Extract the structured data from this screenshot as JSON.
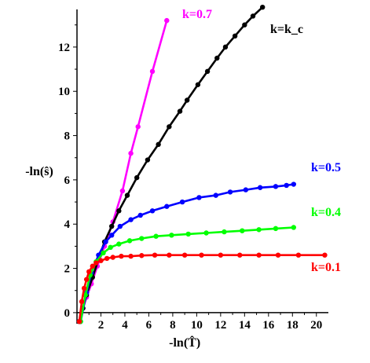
{
  "chart_data": {
    "type": "line",
    "title": "",
    "xlabel": "-ln(T̂)",
    "ylabel": "-ln(ŝ)",
    "xlim": [
      0,
      21
    ],
    "ylim": [
      -0.5,
      13.7
    ],
    "x_ticks": [
      2,
      4,
      6,
      8,
      10,
      12,
      14,
      16,
      18,
      20
    ],
    "y_ticks": [
      0,
      2,
      4,
      6,
      8,
      10,
      12
    ],
    "grid": false,
    "legend": "labels at line ends",
    "series": [
      {
        "name": "k=0.7",
        "color": "#ff00ff",
        "x": [
          0.2,
          0.5,
          0.8,
          1.2,
          1.7,
          2.3,
          3.0,
          3.8,
          4.5,
          5.1,
          6.3,
          7.5
        ],
        "y": [
          -0.4,
          0.2,
          0.7,
          1.3,
          2.1,
          3.0,
          4.1,
          5.5,
          7.2,
          8.4,
          10.9,
          13.2
        ]
      },
      {
        "name": "k=k_c",
        "color": "#000000",
        "x": [
          0.2,
          0.5,
          0.8,
          1.3,
          1.8,
          2.3,
          2.9,
          3.5,
          4.2,
          5.0,
          5.9,
          6.8,
          7.7,
          8.6,
          9.2,
          10.1,
          10.9,
          11.7,
          12.4,
          13.2,
          14.0,
          14.7,
          15.5
        ],
        "y": [
          -0.4,
          0.2,
          0.8,
          1.6,
          2.4,
          3.2,
          3.9,
          4.6,
          5.3,
          6.1,
          6.9,
          7.6,
          8.4,
          9.1,
          9.6,
          10.3,
          10.9,
          11.5,
          12.0,
          12.5,
          13.0,
          13.4,
          13.8
        ]
      },
      {
        "name": "k=0.5",
        "color": "#0000ff",
        "x": [
          0.3,
          0.8,
          1.2,
          1.8,
          2.4,
          2.9,
          3.6,
          4.5,
          5.3,
          6.3,
          7.5,
          8.8,
          10.2,
          11.6,
          12.8,
          14.1,
          15.3,
          16.6,
          17.5,
          18.1
        ],
        "y": [
          -0.4,
          0.9,
          1.8,
          2.6,
          3.2,
          3.5,
          3.9,
          4.2,
          4.4,
          4.6,
          4.8,
          5.0,
          5.2,
          5.3,
          5.45,
          5.55,
          5.65,
          5.7,
          5.75,
          5.8
        ]
      },
      {
        "name": "k=0.4",
        "color": "#00ff00",
        "x": [
          0.3,
          0.7,
          1.1,
          1.6,
          2.2,
          2.8,
          3.5,
          4.4,
          5.4,
          6.6,
          7.9,
          9.3,
          10.8,
          12.3,
          13.8,
          15.2,
          16.6,
          18.1
        ],
        "y": [
          -0.4,
          0.8,
          1.7,
          2.3,
          2.7,
          2.95,
          3.1,
          3.25,
          3.35,
          3.45,
          3.5,
          3.55,
          3.6,
          3.65,
          3.7,
          3.75,
          3.8,
          3.85
        ]
      },
      {
        "name": "k=0.1",
        "color": "#ff0000",
        "x": [
          0.2,
          0.4,
          0.6,
          0.8,
          1.0,
          1.3,
          1.6,
          2.0,
          2.5,
          3.0,
          3.7,
          4.5,
          5.4,
          6.5,
          7.7,
          9.0,
          10.4,
          12.0,
          13.6,
          15.2,
          16.8,
          18.5,
          20.7
        ],
        "y": [
          -0.4,
          0.5,
          1.1,
          1.5,
          1.85,
          2.1,
          2.25,
          2.35,
          2.45,
          2.5,
          2.55,
          2.55,
          2.58,
          2.6,
          2.6,
          2.6,
          2.6,
          2.6,
          2.6,
          2.6,
          2.6,
          2.6,
          2.6
        ]
      }
    ]
  }
}
